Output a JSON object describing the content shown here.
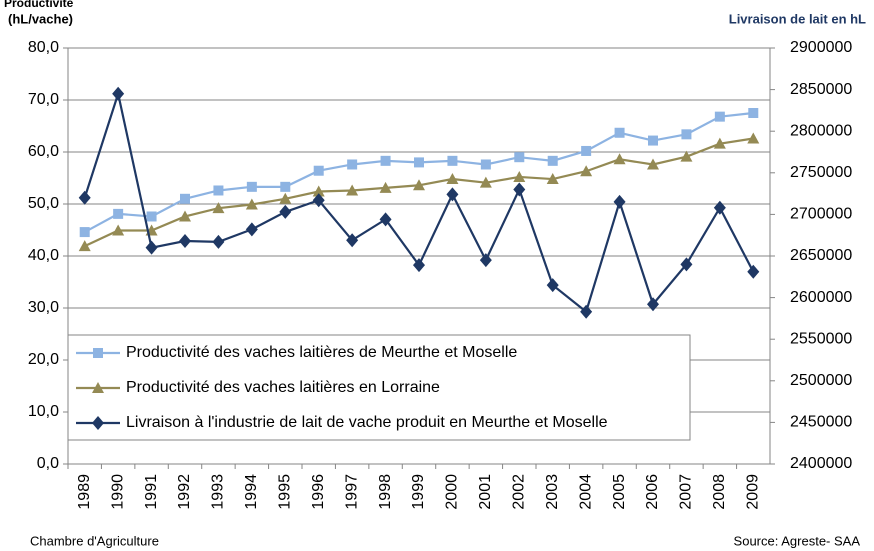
{
  "chart_data": {
    "type": "line",
    "y_label_lines": [
      "Productivité",
      "(hL/vache)"
    ],
    "y2_label": "Livraison de lait en hL",
    "footer_left": "Chambre d'Agriculture",
    "footer_right": "Source: Agreste- SAA",
    "categories": [
      "1989",
      "1990",
      "1991",
      "1992",
      "1993",
      "1994",
      "1995",
      "1996",
      "1997",
      "1998",
      "1999",
      "2000",
      "2001",
      "2002",
      "2003",
      "2004",
      "2005",
      "2006",
      "2007",
      "2008",
      "2009"
    ],
    "series": [
      {
        "name": "Productivité des vaches laitières de Meurthe et Moselle",
        "color": "#8db3e2",
        "marker": "square",
        "values": [
          44.6,
          48.1,
          47.6,
          51.0,
          52.6,
          53.3,
          53.3,
          56.4,
          57.6,
          58.3,
          58.0,
          58.3,
          57.6,
          59.0,
          58.3,
          60.2,
          63.7,
          62.2,
          63.4,
          66.8,
          67.5
        ]
      },
      {
        "name": "Productivité des vaches laitières en Lorraine",
        "color": "#948a54",
        "marker": "triangle",
        "values": [
          41.9,
          44.9,
          44.9,
          47.6,
          49.2,
          49.9,
          51.0,
          52.4,
          52.6,
          53.1,
          53.6,
          54.8,
          54.1,
          55.2,
          54.8,
          56.3,
          58.6,
          57.6,
          59.1,
          61.6,
          62.6
        ]
      },
      {
        "name": "Livraison à l'industrie de lait de vache produit en Meurthe et Moselle",
        "color": "#1f3864",
        "marker": "diamond",
        "axis": "y2",
        "values": [
          2720000,
          2845000,
          2660000,
          2668000,
          2667000,
          2682000,
          2703000,
          2717000,
          2669000,
          2694000,
          2639000,
          2724000,
          2645000,
          2730000,
          2615000,
          2583000,
          2715000,
          2592000,
          2640000,
          2708000,
          2631000
        ]
      }
    ],
    "ylim": [
      0,
      80
    ],
    "yticks": [
      {
        "value": 0,
        "label": "0,0"
      },
      {
        "value": 10,
        "label": "10,0"
      },
      {
        "value": 20,
        "label": "20,0"
      },
      {
        "value": 30,
        "label": "30,0"
      },
      {
        "value": 40,
        "label": "40,0"
      },
      {
        "value": 50,
        "label": "50,0"
      },
      {
        "value": 60,
        "label": "60,0"
      },
      {
        "value": 70,
        "label": "70,0"
      },
      {
        "value": 80,
        "label": "80,0"
      }
    ],
    "y2lim": [
      2400000,
      2900000
    ],
    "y2ticks": [
      2400000,
      2450000,
      2500000,
      2550000,
      2600000,
      2650000,
      2700000,
      2750000,
      2800000,
      2850000,
      2900000
    ],
    "grid": true,
    "legend": "lower left"
  }
}
